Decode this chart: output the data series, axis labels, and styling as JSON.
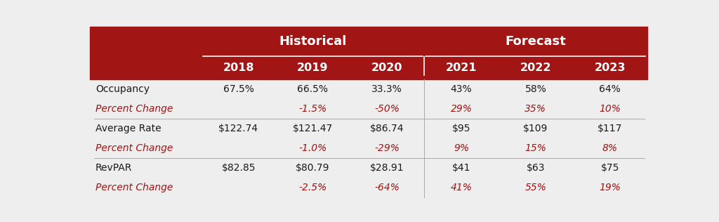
{
  "header_bg_color": "#A11515",
  "header_text_color": "#FFFFFF",
  "body_bg_light": "#EEEEEE",
  "body_bg_dark": "#E0E0E0",
  "body_text_color": "#1A1A1A",
  "italic_text_color": "#A11515",
  "col_headers": [
    "2018",
    "2019",
    "2020",
    "2021",
    "2022",
    "2023"
  ],
  "row_labels": [
    "Occupancy",
    "Percent Change",
    "Average Rate",
    "Percent Change",
    "RevPAR",
    "Percent Change"
  ],
  "row_italic": [
    false,
    true,
    false,
    true,
    false,
    true
  ],
  "table_data": [
    [
      "67.5%",
      "66.5%",
      "33.3%",
      "43%",
      "58%",
      "64%"
    ],
    [
      "",
      "-1.5%",
      "-50%",
      "29%",
      "35%",
      "10%"
    ],
    [
      "$122.74",
      "$121.47",
      "$86.74",
      "$95",
      "$109",
      "$117"
    ],
    [
      "",
      "-1.0%",
      "-29%",
      "9%",
      "15%",
      "8%"
    ],
    [
      "$82.85",
      "$80.79",
      "$28.91",
      "$41",
      "$63",
      "$75"
    ],
    [
      "",
      "-2.5%",
      "-64%",
      "41%",
      "55%",
      "19%"
    ]
  ],
  "figsize": [
    10.24,
    3.16
  ],
  "dpi": 100
}
